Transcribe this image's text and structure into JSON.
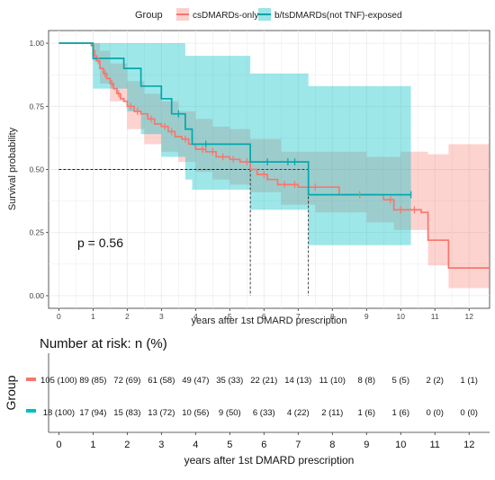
{
  "chart_data": [
    {
      "type": "line",
      "subtype": "kaplan-meier survival curve with confidence bands",
      "legend": {
        "title": "Group",
        "position": "top",
        "entries": [
          "csDMARDs-only",
          "b/tsDMARDs(not TNF)-exposed"
        ]
      },
      "colors": {
        "cs": "#F8766D",
        "b": "#00BFC4"
      },
      "xlabel": "years after 1st DMARD prescription",
      "ylabel": "Survival probability",
      "xlim": [
        -0.3,
        12.6
      ],
      "ylim": [
        -0.05,
        1.05
      ],
      "x_ticks": [
        "0",
        "1",
        "2",
        "3",
        "4",
        "5",
        "6",
        "7",
        "8",
        "9",
        "10",
        "11",
        "12"
      ],
      "y_ticks": [
        "0.00",
        "0.25",
        "0.50",
        "0.75",
        "1.00"
      ],
      "grid": true,
      "annotation": "p = 0.56",
      "median_lines": [
        {
          "series": "csDMARDs-only",
          "x": 5.6,
          "y": 0.5
        },
        {
          "series": "b/tsDMARDs(not TNF)-exposed",
          "x": 7.3,
          "y": 0.5
        }
      ],
      "series": [
        {
          "name": "csDMARDs-only",
          "steps": [
            [
              0,
              1.0
            ],
            [
              0.95,
              0.99
            ],
            [
              1.0,
              0.97
            ],
            [
              1.05,
              0.95
            ],
            [
              1.1,
              0.93
            ],
            [
              1.2,
              0.9
            ],
            [
              1.3,
              0.88
            ],
            [
              1.4,
              0.86
            ],
            [
              1.5,
              0.84
            ],
            [
              1.6,
              0.82
            ],
            [
              1.7,
              0.8
            ],
            [
              1.8,
              0.78
            ],
            [
              1.9,
              0.77
            ],
            [
              2.0,
              0.75
            ],
            [
              2.2,
              0.73
            ],
            [
              2.4,
              0.72
            ],
            [
              2.6,
              0.7
            ],
            [
              2.8,
              0.68
            ],
            [
              3.0,
              0.67
            ],
            [
              3.2,
              0.65
            ],
            [
              3.4,
              0.63
            ],
            [
              3.6,
              0.62
            ],
            [
              3.8,
              0.6
            ],
            [
              4.0,
              0.58
            ],
            [
              4.3,
              0.57
            ],
            [
              4.6,
              0.55
            ],
            [
              5.0,
              0.54
            ],
            [
              5.3,
              0.53
            ],
            [
              5.6,
              0.5
            ],
            [
              5.8,
              0.48
            ],
            [
              6.1,
              0.46
            ],
            [
              6.4,
              0.44
            ],
            [
              7.0,
              0.43
            ],
            [
              8.2,
              0.4
            ],
            [
              9.5,
              0.38
            ],
            [
              9.8,
              0.34
            ],
            [
              10.6,
              0.33
            ],
            [
              10.8,
              0.22
            ],
            [
              11.4,
              0.11
            ],
            [
              12.6,
              0.11
            ]
          ],
          "censor_x": [
            1.15,
            1.35,
            1.55,
            1.75,
            2.1,
            2.3,
            2.7,
            3.1,
            3.3,
            3.7,
            4.2,
            4.5,
            4.8,
            5.1,
            5.5,
            6.0,
            6.6,
            6.9,
            7.5,
            8.8,
            9.7,
            10.0,
            10.4
          ],
          "ci_upper": [
            [
              0,
              1.0
            ],
            [
              1.0,
              1.0
            ],
            [
              1.2,
              0.97
            ],
            [
              1.5,
              0.92
            ],
            [
              2.0,
              0.85
            ],
            [
              2.5,
              0.8
            ],
            [
              3.0,
              0.77
            ],
            [
              3.5,
              0.73
            ],
            [
              4.0,
              0.7
            ],
            [
              4.5,
              0.67
            ],
            [
              5.0,
              0.66
            ],
            [
              5.6,
              0.62
            ],
            [
              6.5,
              0.57
            ],
            [
              7.5,
              0.57
            ],
            [
              9.0,
              0.55
            ],
            [
              10.0,
              0.57
            ],
            [
              10.8,
              0.56
            ],
            [
              11.4,
              0.6
            ],
            [
              12.6,
              0.6
            ]
          ],
          "ci_lower": [
            [
              0,
              1.0
            ],
            [
              1.0,
              0.93
            ],
            [
              1.2,
              0.84
            ],
            [
              1.5,
              0.77
            ],
            [
              2.0,
              0.66
            ],
            [
              2.5,
              0.6
            ],
            [
              3.0,
              0.57
            ],
            [
              3.5,
              0.53
            ],
            [
              4.0,
              0.49
            ],
            [
              4.5,
              0.46
            ],
            [
              5.0,
              0.44
            ],
            [
              5.6,
              0.41
            ],
            [
              6.5,
              0.36
            ],
            [
              7.5,
              0.33
            ],
            [
              9.0,
              0.29
            ],
            [
              9.8,
              0.26
            ],
            [
              10.8,
              0.12
            ],
            [
              11.4,
              0.03
            ],
            [
              12.6,
              0.03
            ]
          ]
        },
        {
          "name": "b/tsDMARDs(not TNF)-exposed",
          "steps": [
            [
              0,
              1.0
            ],
            [
              1.0,
              0.94
            ],
            [
              1.9,
              0.9
            ],
            [
              2.4,
              0.83
            ],
            [
              3.0,
              0.78
            ],
            [
              3.3,
              0.72
            ],
            [
              3.7,
              0.66
            ],
            [
              3.9,
              0.6
            ],
            [
              5.0,
              0.6
            ],
            [
              5.6,
              0.53
            ],
            [
              7.3,
              0.4
            ],
            [
              10.3,
              0.4
            ]
          ],
          "censor_x": [
            3.5,
            4.3,
            6.1,
            6.7,
            6.9,
            10.3
          ],
          "ci_upper": [
            [
              0,
              1.0
            ],
            [
              2.0,
              1.0
            ],
            [
              3.0,
              1.0
            ],
            [
              3.7,
              0.95
            ],
            [
              5.6,
              0.88
            ],
            [
              7.3,
              0.83
            ],
            [
              10.3,
              0.83
            ]
          ],
          "ci_lower": [
            [
              0,
              1.0
            ],
            [
              1.0,
              0.82
            ],
            [
              2.0,
              0.73
            ],
            [
              2.4,
              0.64
            ],
            [
              3.0,
              0.55
            ],
            [
              3.7,
              0.46
            ],
            [
              3.9,
              0.42
            ],
            [
              5.6,
              0.34
            ],
            [
              7.3,
              0.2
            ],
            [
              10.3,
              0.2
            ]
          ]
        }
      ]
    },
    {
      "type": "table",
      "title": "Number at risk: n (%)",
      "ylabel": "Group",
      "xlabel": "years after 1st DMARD prescription",
      "x_ticks": [
        "0",
        "1",
        "2",
        "3",
        "4",
        "5",
        "6",
        "7",
        "8",
        "9",
        "10",
        "11",
        "12"
      ],
      "rows": [
        {
          "group": "csDMARDs-only",
          "values": [
            "105 (100)",
            "89 (85)",
            "72 (69)",
            "61 (58)",
            "49 (47)",
            "35 (33)",
            "22 (21)",
            "14 (13)",
            "11 (10)",
            "8 (8)",
            "5 (5)",
            "2 (2)",
            "1 (1)"
          ]
        },
        {
          "group": "b/tsDMARDs(not TNF)-exposed",
          "values": [
            "18 (100)",
            "17 (94)",
            "15 (83)",
            "13 (72)",
            "10 (56)",
            "9 (50)",
            "6 (33)",
            "4 (22)",
            "2 (11)",
            "1 (6)",
            "1 (6)",
            "0 (0)",
            "0 (0)"
          ]
        }
      ]
    }
  ]
}
